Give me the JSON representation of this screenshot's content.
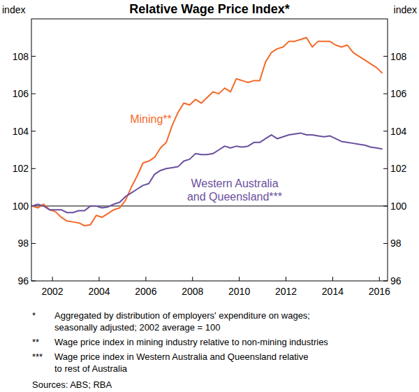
{
  "chart_data": {
    "type": "line",
    "title": "Relative Wage Price Index*",
    "y_label": "index",
    "y2_label": "index",
    "x": [
      2001.625,
      2001.875,
      2002.125,
      2002.375,
      2002.625,
      2002.875,
      2003.125,
      2003.375,
      2003.625,
      2003.875,
      2004.125,
      2004.375,
      2004.625,
      2004.875,
      2005.125,
      2005.375,
      2005.625,
      2005.875,
      2006.125,
      2006.375,
      2006.625,
      2006.875,
      2007.125,
      2007.375,
      2007.625,
      2007.875,
      2008.125,
      2008.375,
      2008.625,
      2008.875,
      2009.125,
      2009.375,
      2009.625,
      2009.875,
      2010.125,
      2010.375,
      2010.625,
      2010.875,
      2011.125,
      2011.375,
      2011.625,
      2011.875,
      2012.125,
      2012.375,
      2012.625,
      2012.875,
      2013.125,
      2013.375,
      2013.625,
      2013.875,
      2014.125,
      2014.375,
      2014.625,
      2014.875,
      2015.125,
      2015.375,
      2015.625,
      2015.875,
      2016.125,
      2016.375,
      2016.625
    ],
    "series": [
      {
        "name": "Mining**",
        "color": "#f26a2a",
        "values": [
          100.0,
          99.9,
          100.1,
          99.8,
          99.7,
          99.4,
          99.2,
          99.15,
          99.1,
          98.95,
          99.0,
          99.5,
          99.4,
          99.6,
          99.8,
          99.9,
          100.3,
          101.0,
          101.6,
          102.3,
          102.4,
          102.6,
          103.1,
          103.4,
          104.3,
          105.0,
          105.5,
          105.4,
          105.7,
          105.5,
          105.8,
          106.1,
          106.0,
          106.3,
          106.1,
          106.8,
          106.7,
          106.6,
          106.7,
          106.7,
          107.7,
          108.2,
          108.4,
          108.5,
          108.8,
          108.8,
          108.9,
          109.0,
          108.5,
          108.8,
          108.8,
          108.8,
          108.6,
          108.5,
          108.6,
          108.2,
          108.0,
          107.8,
          107.6,
          107.4,
          107.1
        ]
      },
      {
        "name": "Western Australia\nand Queensland***",
        "color": "#6b4f9e",
        "values": [
          100.0,
          100.1,
          100.0,
          99.8,
          99.8,
          99.8,
          99.65,
          99.65,
          99.75,
          99.75,
          100.0,
          100.0,
          99.9,
          99.95,
          100.1,
          100.2,
          100.5,
          100.7,
          100.9,
          101.1,
          101.2,
          101.7,
          101.9,
          102.0,
          102.05,
          102.1,
          102.4,
          102.5,
          102.8,
          102.75,
          102.75,
          102.8,
          103.0,
          103.2,
          103.1,
          103.2,
          103.15,
          103.2,
          103.4,
          103.4,
          103.6,
          103.8,
          103.6,
          103.7,
          103.8,
          103.85,
          103.9,
          103.8,
          103.8,
          103.75,
          103.7,
          103.75,
          103.6,
          103.45,
          103.4,
          103.35,
          103.3,
          103.25,
          103.15,
          103.1,
          103.05
        ]
      }
    ],
    "xlim": [
      2001.6,
      2016.85
    ],
    "xticks": [
      {
        "value": 2002.5,
        "label": "2002"
      },
      {
        "value": 2004.5,
        "label": "2004"
      },
      {
        "value": 2006.5,
        "label": "2006"
      },
      {
        "value": 2008.5,
        "label": "2008"
      },
      {
        "value": 2010.5,
        "label": "2010"
      },
      {
        "value": 2012.5,
        "label": "2012"
      },
      {
        "value": 2014.5,
        "label": "2014"
      },
      {
        "value": 2016.5,
        "label": "2016"
      }
    ],
    "ylim": [
      96,
      110
    ],
    "yticks": [
      96,
      98,
      100,
      102,
      104,
      106,
      108
    ],
    "baseline": 100,
    "grid": false,
    "notes": [
      {
        "marker": "*",
        "lines": [
          "Aggregated by distribution of employers' expenditure on wages;",
          "seasonally adjusted; 2002 average = 100"
        ]
      },
      {
        "marker": "**",
        "lines": [
          "Wage price index in mining industry relative to non-mining industries"
        ]
      },
      {
        "marker": "***",
        "lines": [
          "Wage price index in Western Australia and Queensland relative",
          "to rest of Australia"
        ]
      }
    ],
    "source": "Sources: ABS; RBA"
  }
}
